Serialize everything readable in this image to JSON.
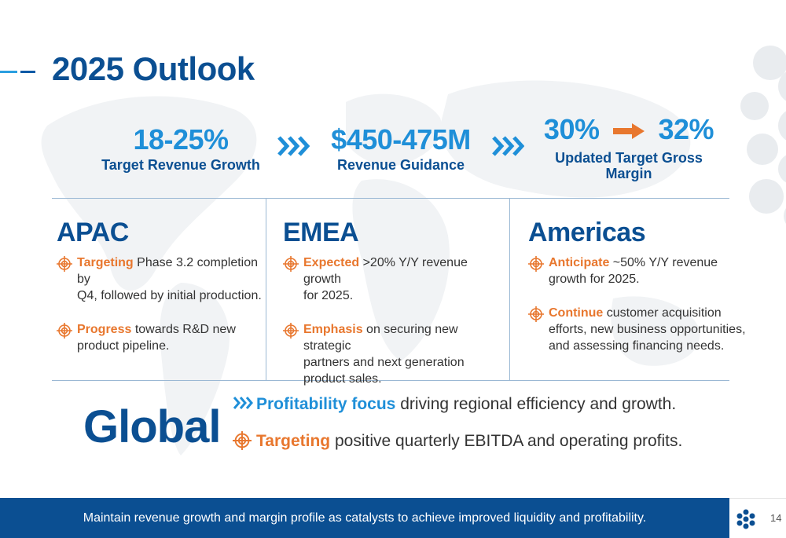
{
  "title": "2025 Outlook",
  "kpis": [
    {
      "value": "18-25%",
      "label": "Target Revenue Growth"
    },
    {
      "value": "$450-475M",
      "label": "Revenue Guidance"
    },
    {
      "value_from": "30%",
      "value_to": "32%",
      "label_line1": "Updated Target Gross",
      "label_line2": "Margin"
    }
  ],
  "regions": {
    "apac": {
      "title": "APAC",
      "bullets": [
        {
          "kw": "Targeting",
          "text_line1": " Phase 3.2 completion by",
          "text_line2": "Q4, followed by initial production."
        },
        {
          "kw": "Progress",
          "text_line1": " towards R&D new",
          "text_line2": "product pipeline."
        }
      ]
    },
    "emea": {
      "title": "EMEA",
      "bullets": [
        {
          "kw": "Expected",
          "text_line1": " >20% Y/Y revenue growth",
          "text_line2": "for 2025."
        },
        {
          "kw": "Emphasis",
          "text_line1": " on securing new strategic",
          "text_line2": "partners and next generation",
          "text_line3": "product sales."
        }
      ]
    },
    "americas": {
      "title": "Americas",
      "bullets": [
        {
          "kw": "Anticipate",
          "text_line1": " ~50% Y/Y revenue",
          "text_line2": "growth for 2025."
        },
        {
          "kw": "Continue",
          "text_line1": " customer acquisition",
          "text_line2": "efforts, new business opportunities,",
          "text_line3": "and assessing financing needs."
        }
      ]
    }
  },
  "global": {
    "title": "Global",
    "line1_kw": "Profitability focus",
    "line1_text": " driving regional efficiency and growth.",
    "line2_kw": "Targeting",
    "line2_text": " positive quarterly EBITDA and operating profits."
  },
  "footer": {
    "text": "Maintain revenue growth and margin profile as catalysts to achieve improved liquidity and profitability.",
    "page_number": "14"
  },
  "colors": {
    "navy": "#0b4f92",
    "blue": "#1f8fd8",
    "orange": "#e8772e"
  },
  "icons": [
    "chevron-triple-icon",
    "target-icon",
    "arrow-right-icon",
    "logo-icon"
  ]
}
